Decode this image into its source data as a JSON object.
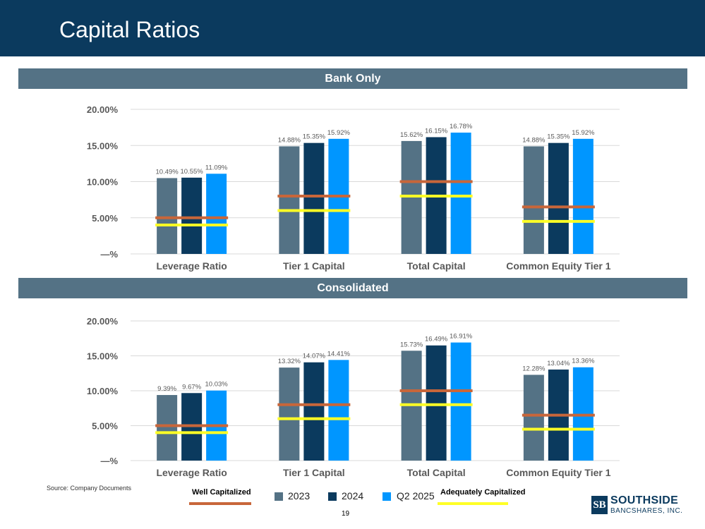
{
  "page": {
    "title": "Capital Ratios",
    "source": "Source: Company Documents",
    "page_number": "19"
  },
  "logo": {
    "box_text": "SB",
    "main": "SOUTHSIDE",
    "sub": "BANCSHARES, INC."
  },
  "legend": {
    "well_capitalized": "Well Capitalized",
    "adequately_capitalized": "Adequately Capitalized",
    "series": [
      "2023",
      "2024",
      "Q2 2025"
    ]
  },
  "colors": {
    "header": "#0b3a5e",
    "section_bar": "#547285",
    "series_2023": "#547285",
    "series_2024": "#0b3a5e",
    "series_q2_2025": "#0096ff",
    "well_capitalized": "#c8663a",
    "adequately_capitalized": "#ffff26"
  },
  "chart_data": [
    {
      "type": "bar",
      "title": "Bank Only",
      "categories": [
        "Leverage Ratio",
        "Tier 1 Capital",
        "Total Capital",
        "Common Equity Tier 1"
      ],
      "series": [
        {
          "name": "2023",
          "values": [
            10.49,
            14.88,
            15.62,
            14.88
          ],
          "labels": [
            "10.49%",
            "14.88%",
            "15.62%",
            "14.88%"
          ]
        },
        {
          "name": "2024",
          "values": [
            10.55,
            15.35,
            16.15,
            15.35
          ],
          "labels": [
            "10.55%",
            "15.35%",
            "16.15%",
            "15.35%"
          ]
        },
        {
          "name": "Q2 2025",
          "values": [
            11.09,
            15.92,
            16.78,
            15.92
          ],
          "labels": [
            "11.09%",
            "15.92%",
            "16.78%",
            "15.92%"
          ]
        }
      ],
      "thresholds": [
        {
          "name": "Well Capitalized",
          "values": [
            5.0,
            8.0,
            10.0,
            6.5
          ]
        },
        {
          "name": "Adequately Capitalized",
          "values": [
            4.0,
            6.0,
            8.0,
            4.5
          ]
        }
      ],
      "ylim": [
        0,
        20
      ],
      "yticks": [
        "—%",
        "5.00%",
        "10.00%",
        "15.00%",
        "20.00%"
      ],
      "ytick_values": [
        0,
        5,
        10,
        15,
        20
      ]
    },
    {
      "type": "bar",
      "title": "Consolidated",
      "categories": [
        "Leverage Ratio",
        "Tier 1 Capital",
        "Total Capital",
        "Common Equity Tier 1"
      ],
      "series": [
        {
          "name": "2023",
          "values": [
            9.39,
            13.32,
            15.73,
            12.28
          ],
          "labels": [
            "9.39%",
            "13.32%",
            "15.73%",
            "12.28%"
          ]
        },
        {
          "name": "2024",
          "values": [
            9.67,
            14.07,
            16.49,
            13.04
          ],
          "labels": [
            "9.67%",
            "14.07%",
            "16.49%",
            "13.04%"
          ]
        },
        {
          "name": "Q2 2025",
          "values": [
            10.03,
            14.41,
            16.91,
            13.36
          ],
          "labels": [
            "10.03%",
            "14.41%",
            "16.91%",
            "13.36%"
          ]
        }
      ],
      "thresholds": [
        {
          "name": "Well Capitalized",
          "values": [
            5.0,
            8.0,
            10.0,
            6.5
          ]
        },
        {
          "name": "Adequately Capitalized",
          "values": [
            4.0,
            6.0,
            8.0,
            4.5
          ]
        }
      ],
      "ylim": [
        0,
        20
      ],
      "yticks": [
        "—%",
        "5.00%",
        "10.00%",
        "15.00%",
        "20.00%"
      ],
      "ytick_values": [
        0,
        5,
        10,
        15,
        20
      ]
    }
  ]
}
